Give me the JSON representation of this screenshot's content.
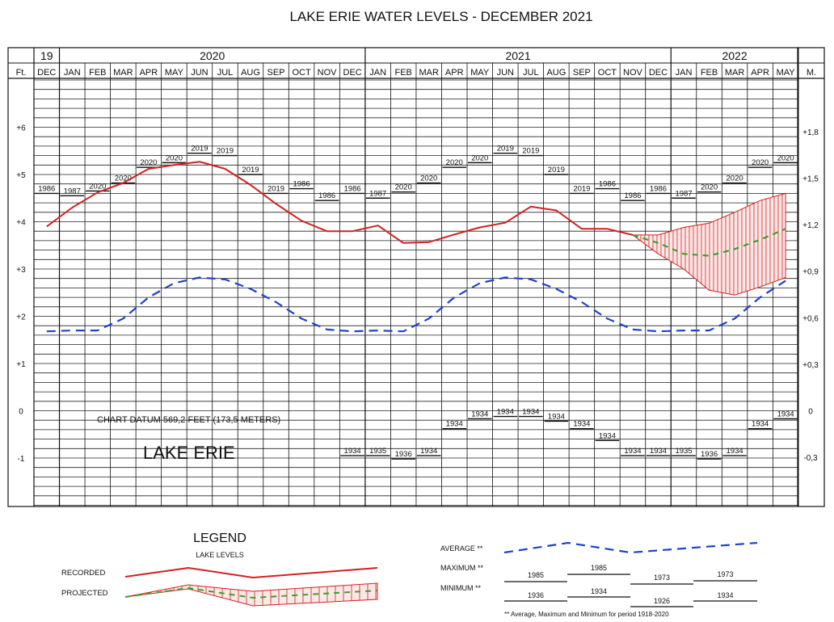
{
  "chart_data": {
    "type": "line",
    "title": "LAKE ERIE WATER LEVELS - DECEMBER 2021",
    "year_headers": [
      "19",
      "2020",
      "2021",
      "2022"
    ],
    "months": [
      "DEC",
      "JAN",
      "FEB",
      "MAR",
      "APR",
      "MAY",
      "JUN",
      "JUL",
      "AUG",
      "SEP",
      "OCT",
      "NOV",
      "DEC",
      "JAN",
      "FEB",
      "MAR",
      "APR",
      "MAY",
      "JUN",
      "JUL",
      "AUG",
      "SEP",
      "OCT",
      "NOV",
      "DEC",
      "JAN",
      "FEB",
      "MAR",
      "APR",
      "MAY"
    ],
    "left_axis_label": "Ft.",
    "right_axis_label": "M.",
    "left_ticks": [
      {
        "v": 6,
        "label": "+6"
      },
      {
        "v": 5,
        "label": "+5"
      },
      {
        "v": 4,
        "label": "+4"
      },
      {
        "v": 3,
        "label": "+3"
      },
      {
        "v": 2,
        "label": "+2"
      },
      {
        "v": 1,
        "label": "+1"
      },
      {
        "v": 0,
        "label": "0"
      },
      {
        "v": -1,
        "label": "-1"
      }
    ],
    "right_ticks": [
      {
        "v": 5.906,
        "label": "+1,8"
      },
      {
        "v": 4.921,
        "label": "+1,5"
      },
      {
        "v": 3.937,
        "label": "+1,2"
      },
      {
        "v": 2.953,
        "label": "+0,9"
      },
      {
        "v": 1.969,
        "label": "+0,6"
      },
      {
        "v": 0.984,
        "label": "+0,3"
      },
      {
        "v": 0,
        "label": "0"
      },
      {
        "v": -0.984,
        "label": "-0,3"
      }
    ],
    "ylim": [
      -2,
      7
    ],
    "series": [
      {
        "name": "RECORDED",
        "color": "#d42020",
        "style": "solid",
        "values": [
          3.9,
          4.3,
          4.62,
          4.82,
          5.12,
          5.2,
          5.27,
          5.12,
          4.78,
          4.38,
          4.02,
          3.8,
          3.8,
          3.92,
          3.55,
          3.57,
          3.73,
          3.88,
          3.98,
          4.32,
          4.24,
          3.85,
          3.85,
          3.72,
          null,
          null,
          null,
          null,
          null,
          null
        ]
      },
      {
        "name": "AVERAGE",
        "color": "#2040d0",
        "style": "dashed",
        "values": [
          1.68,
          1.7,
          1.7,
          1.95,
          2.4,
          2.7,
          2.82,
          2.78,
          2.58,
          2.3,
          1.95,
          1.72,
          1.68,
          1.7,
          1.68,
          1.95,
          2.4,
          2.7,
          2.82,
          2.78,
          2.58,
          2.3,
          1.95,
          1.72,
          1.68,
          1.7,
          1.7,
          1.95,
          2.4,
          2.75
        ]
      },
      {
        "name": "PROJECTED",
        "color": "#3aa030",
        "style": "dashed",
        "values": [
          null,
          null,
          null,
          null,
          null,
          null,
          null,
          null,
          null,
          null,
          null,
          null,
          null,
          null,
          null,
          null,
          null,
          null,
          null,
          null,
          null,
          null,
          null,
          3.72,
          3.55,
          3.32,
          3.28,
          3.42,
          3.62,
          3.85
        ]
      }
    ],
    "projected_range": {
      "upper": [
        3.72,
        3.72,
        3.88,
        3.97,
        4.2,
        4.45,
        4.6
      ],
      "lower": [
        3.72,
        3.32,
        3.0,
        2.55,
        2.45,
        2.62,
        2.82
      ],
      "start_index": 23
    },
    "maximum": [
      {
        "year": "1986",
        "value": 4.6
      },
      {
        "year": "1987",
        "value": 4.55
      },
      {
        "year": "2020",
        "value": 4.65
      },
      {
        "year": "2020",
        "value": 4.82
      },
      {
        "year": "2020",
        "value": 5.15
      },
      {
        "year": "2020",
        "value": 5.25
      },
      {
        "year": "2019",
        "value": 5.45
      },
      {
        "year": "2019",
        "value": 5.4
      },
      {
        "year": "2019",
        "value": 5.0
      },
      {
        "year": "2019",
        "value": 4.6
      },
      {
        "year": "1986",
        "value": 4.7
      },
      {
        "year": "1986",
        "value": 4.45
      },
      {
        "year": "1986",
        "value": 4.6
      },
      {
        "year": "1987",
        "value": 4.5
      },
      {
        "year": "2020",
        "value": 4.63
      },
      {
        "year": "2020",
        "value": 4.82
      },
      {
        "year": "2020",
        "value": 5.15
      },
      {
        "year": "2020",
        "value": 5.25
      },
      {
        "year": "2019",
        "value": 5.45
      },
      {
        "year": "2019",
        "value": 5.4
      },
      {
        "year": "2019",
        "value": 5.0
      },
      {
        "year": "2019",
        "value": 4.6
      },
      {
        "year": "1986",
        "value": 4.7
      },
      {
        "year": "1986",
        "value": 4.45
      },
      {
        "year": "1986",
        "value": 4.6
      },
      {
        "year": "1987",
        "value": 4.5
      },
      {
        "year": "2020",
        "value": 4.63
      },
      {
        "year": "2020",
        "value": 4.82
      },
      {
        "year": "2020",
        "value": 5.15
      },
      {
        "year": "2020",
        "value": 5.25
      }
    ],
    "minimum": [
      {
        "col": 12,
        "year": "1934",
        "value": -0.95
      },
      {
        "col": 13,
        "year": "1935",
        "value": -0.95
      },
      {
        "col": 14,
        "year": "1936",
        "value": -1.02
      },
      {
        "col": 15,
        "year": "1934",
        "value": -0.95
      },
      {
        "col": 16,
        "year": "1934",
        "value": -0.38
      },
      {
        "col": 17,
        "year": "1934",
        "value": -0.17
      },
      {
        "col": 18,
        "year": "1934",
        "value": -0.12
      },
      {
        "col": 19,
        "year": "1934",
        "value": -0.12
      },
      {
        "col": 20,
        "year": "1934",
        "value": -0.22
      },
      {
        "col": 21,
        "year": "1934",
        "value": -0.38
      },
      {
        "col": 22,
        "year": "1934",
        "value": -0.63
      },
      {
        "col": 23,
        "year": "1934",
        "value": -0.95
      },
      {
        "col": 24,
        "year": "1934",
        "value": -0.95
      },
      {
        "col": 25,
        "year": "1935",
        "value": -0.95
      },
      {
        "col": 26,
        "year": "1936",
        "value": -1.02
      },
      {
        "col": 27,
        "year": "1934",
        "value": -0.95
      },
      {
        "col": 28,
        "year": "1934",
        "value": -0.38
      },
      {
        "col": 29,
        "year": "1934",
        "value": -0.17
      }
    ],
    "annotations": {
      "datum": "CHART DATUM  569,2 FEET  (173,5 METERS)",
      "lake": "LAKE ERIE"
    },
    "legend": {
      "title": "LEGEND",
      "subtitle": "LAKE LEVELS",
      "recorded": "RECORDED",
      "projected": "PROJECTED",
      "average": "AVERAGE **",
      "maximum": "MAXIMUM **",
      "minimum": "MINIMUM **",
      "max_years": [
        "1985",
        "1985",
        "1973",
        "1973"
      ],
      "min_years": [
        "1936",
        "1934",
        "1926",
        "1934"
      ],
      "footnote": "** Average, Maximum and Minimum for period 1918-2020"
    }
  }
}
